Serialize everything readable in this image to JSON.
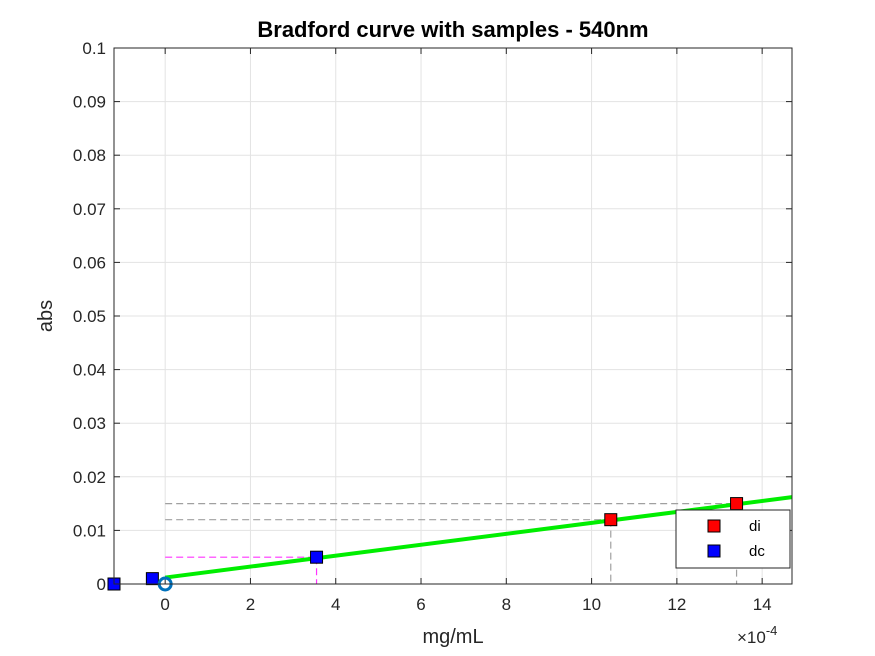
{
  "chart_data": {
    "type": "scatter",
    "title": "Bradford curve with samples - 540nm",
    "xlabel": "mg/mL",
    "ylabel": "abs",
    "x_exponent_label": "×10",
    "x_exponent_power": "-4",
    "x_scale": 0.0001,
    "xlim": [
      -1.2,
      14.7
    ],
    "ylim": [
      0,
      0.1
    ],
    "xticks": [
      0,
      2,
      4,
      6,
      8,
      10,
      12,
      14
    ],
    "yticks": [
      0,
      0.01,
      0.02,
      0.03,
      0.04,
      0.05,
      0.06,
      0.07,
      0.08,
      0.09,
      0.1
    ],
    "ytick_labels": [
      "0",
      "0.01",
      "0.02",
      "0.03",
      "0.04",
      "0.05",
      "0.06",
      "0.07",
      "0.08",
      "0.09",
      "0.1"
    ],
    "grid": true,
    "legend_position": "bottom-right",
    "fit_line": {
      "color": "#00ee00",
      "x": [
        0,
        14.7
      ],
      "y": [
        0.0012,
        0.0162
      ]
    },
    "origin_marker": {
      "x": 0,
      "y": 0,
      "color": "#0072bd"
    },
    "series": [
      {
        "name": "di",
        "color": "#ff0000",
        "x": [
          10.45,
          13.4
        ],
        "y": [
          0.012,
          0.015
        ],
        "guide_color": "#a0a0a0"
      },
      {
        "name": "dc",
        "color": "#0000ff",
        "x": [
          -1.2,
          -0.3,
          3.55
        ],
        "y": [
          0,
          0.001,
          0.005
        ],
        "guide_color": "#ff33ff"
      }
    ]
  }
}
